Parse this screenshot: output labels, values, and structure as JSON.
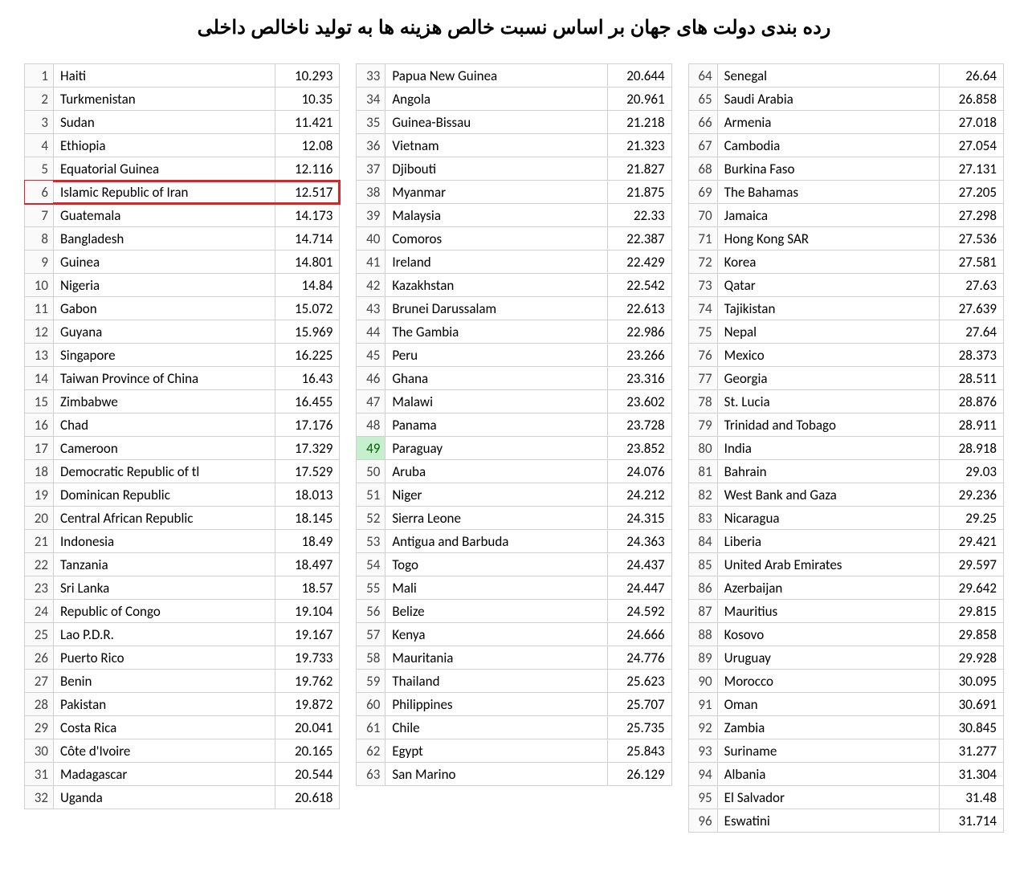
{
  "title": "رده بندی دولت های جهان بر اساس نسبت خالص هزینه ها به تولید ناخالص داخلی",
  "highlight_rank": 6,
  "highlight_color": "#d62728",
  "special_rank_cell": 49,
  "special_cell_bg": "#c6efce",
  "border_color": "#d0d0d0",
  "font_size": 17,
  "title_font_size": 24,
  "columns": [
    [
      {
        "rank": 1,
        "country": "Haiti",
        "value": "10.293"
      },
      {
        "rank": 2,
        "country": "Turkmenistan",
        "value": "10.35"
      },
      {
        "rank": 3,
        "country": "Sudan",
        "value": "11.421"
      },
      {
        "rank": 4,
        "country": "Ethiopia",
        "value": "12.08"
      },
      {
        "rank": 5,
        "country": "Equatorial Guinea",
        "value": "12.116"
      },
      {
        "rank": 6,
        "country": "Islamic Republic of Iran",
        "value": "12.517"
      },
      {
        "rank": 7,
        "country": "Guatemala",
        "value": "14.173"
      },
      {
        "rank": 8,
        "country": "Bangladesh",
        "value": "14.714"
      },
      {
        "rank": 9,
        "country": "Guinea",
        "value": "14.801"
      },
      {
        "rank": 10,
        "country": "Nigeria",
        "value": "14.84"
      },
      {
        "rank": 11,
        "country": "Gabon",
        "value": "15.072"
      },
      {
        "rank": 12,
        "country": "Guyana",
        "value": "15.969"
      },
      {
        "rank": 13,
        "country": "Singapore",
        "value": "16.225"
      },
      {
        "rank": 14,
        "country": "Taiwan Province of China",
        "value": "16.43"
      },
      {
        "rank": 15,
        "country": "Zimbabwe",
        "value": "16.455"
      },
      {
        "rank": 16,
        "country": "Chad",
        "value": "17.176"
      },
      {
        "rank": 17,
        "country": "Cameroon",
        "value": "17.329"
      },
      {
        "rank": 18,
        "country": "Democratic Republic of tl",
        "value": "17.529"
      },
      {
        "rank": 19,
        "country": "Dominican Republic",
        "value": "18.013"
      },
      {
        "rank": 20,
        "country": "Central African Republic",
        "value": "18.145"
      },
      {
        "rank": 21,
        "country": "Indonesia",
        "value": "18.49"
      },
      {
        "rank": 22,
        "country": "Tanzania",
        "value": "18.497"
      },
      {
        "rank": 23,
        "country": "Sri Lanka",
        "value": "18.57"
      },
      {
        "rank": 24,
        "country": "Republic of Congo",
        "value": "19.104"
      },
      {
        "rank": 25,
        "country": "Lao P.D.R.",
        "value": "19.167"
      },
      {
        "rank": 26,
        "country": "Puerto Rico",
        "value": "19.733"
      },
      {
        "rank": 27,
        "country": "Benin",
        "value": "19.762"
      },
      {
        "rank": 28,
        "country": "Pakistan",
        "value": "19.872"
      },
      {
        "rank": 29,
        "country": "Costa Rica",
        "value": "20.041"
      },
      {
        "rank": 30,
        "country": "Côte d'Ivoire",
        "value": "20.165"
      },
      {
        "rank": 31,
        "country": "Madagascar",
        "value": "20.544"
      },
      {
        "rank": 32,
        "country": "Uganda",
        "value": "20.618"
      }
    ],
    [
      {
        "rank": 33,
        "country": "Papua New Guinea",
        "value": "20.644"
      },
      {
        "rank": 34,
        "country": "Angola",
        "value": "20.961"
      },
      {
        "rank": 35,
        "country": "Guinea-Bissau",
        "value": "21.218"
      },
      {
        "rank": 36,
        "country": "Vietnam",
        "value": "21.323"
      },
      {
        "rank": 37,
        "country": "Djibouti",
        "value": "21.827"
      },
      {
        "rank": 38,
        "country": "Myanmar",
        "value": "21.875"
      },
      {
        "rank": 39,
        "country": "Malaysia",
        "value": "22.33"
      },
      {
        "rank": 40,
        "country": "Comoros",
        "value": "22.387"
      },
      {
        "rank": 41,
        "country": "Ireland",
        "value": "22.429"
      },
      {
        "rank": 42,
        "country": "Kazakhstan",
        "value": "22.542"
      },
      {
        "rank": 43,
        "country": "Brunei Darussalam",
        "value": "22.613"
      },
      {
        "rank": 44,
        "country": "The Gambia",
        "value": "22.986"
      },
      {
        "rank": 45,
        "country": "Peru",
        "value": "23.266"
      },
      {
        "rank": 46,
        "country": "Ghana",
        "value": "23.316"
      },
      {
        "rank": 47,
        "country": "Malawi",
        "value": "23.602"
      },
      {
        "rank": 48,
        "country": "Panama",
        "value": "23.728"
      },
      {
        "rank": 49,
        "country": "Paraguay",
        "value": "23.852"
      },
      {
        "rank": 50,
        "country": "Aruba",
        "value": "24.076"
      },
      {
        "rank": 51,
        "country": "Niger",
        "value": "24.212"
      },
      {
        "rank": 52,
        "country": "Sierra Leone",
        "value": "24.315"
      },
      {
        "rank": 53,
        "country": "Antigua and Barbuda",
        "value": "24.363"
      },
      {
        "rank": 54,
        "country": "Togo",
        "value": "24.437"
      },
      {
        "rank": 55,
        "country": "Mali",
        "value": "24.447"
      },
      {
        "rank": 56,
        "country": "Belize",
        "value": "24.592"
      },
      {
        "rank": 57,
        "country": "Kenya",
        "value": "24.666"
      },
      {
        "rank": 58,
        "country": "Mauritania",
        "value": "24.776"
      },
      {
        "rank": 59,
        "country": "Thailand",
        "value": "25.623"
      },
      {
        "rank": 60,
        "country": "Philippines",
        "value": "25.707"
      },
      {
        "rank": 61,
        "country": "Chile",
        "value": "25.735"
      },
      {
        "rank": 62,
        "country": "Egypt",
        "value": "25.843"
      },
      {
        "rank": 63,
        "country": "San Marino",
        "value": "26.129"
      }
    ],
    [
      {
        "rank": 64,
        "country": "Senegal",
        "value": "26.64"
      },
      {
        "rank": 65,
        "country": "Saudi Arabia",
        "value": "26.858"
      },
      {
        "rank": 66,
        "country": "Armenia",
        "value": "27.018"
      },
      {
        "rank": 67,
        "country": "Cambodia",
        "value": "27.054"
      },
      {
        "rank": 68,
        "country": "Burkina Faso",
        "value": "27.131"
      },
      {
        "rank": 69,
        "country": "The Bahamas",
        "value": "27.205"
      },
      {
        "rank": 70,
        "country": "Jamaica",
        "value": "27.298"
      },
      {
        "rank": 71,
        "country": "Hong Kong SAR",
        "value": "27.536"
      },
      {
        "rank": 72,
        "country": "Korea",
        "value": "27.581"
      },
      {
        "rank": 73,
        "country": "Qatar",
        "value": "27.63"
      },
      {
        "rank": 74,
        "country": "Tajikistan",
        "value": "27.639"
      },
      {
        "rank": 75,
        "country": "Nepal",
        "value": "27.64"
      },
      {
        "rank": 76,
        "country": "Mexico",
        "value": "28.373"
      },
      {
        "rank": 77,
        "country": "Georgia",
        "value": "28.511"
      },
      {
        "rank": 78,
        "country": "St. Lucia",
        "value": "28.876"
      },
      {
        "rank": 79,
        "country": "Trinidad and Tobago",
        "value": "28.911"
      },
      {
        "rank": 80,
        "country": "India",
        "value": "28.918"
      },
      {
        "rank": 81,
        "country": "Bahrain",
        "value": "29.03"
      },
      {
        "rank": 82,
        "country": "West Bank and Gaza",
        "value": "29.236"
      },
      {
        "rank": 83,
        "country": "Nicaragua",
        "value": "29.25"
      },
      {
        "rank": 84,
        "country": "Liberia",
        "value": "29.421"
      },
      {
        "rank": 85,
        "country": "United Arab Emirates",
        "value": "29.597"
      },
      {
        "rank": 86,
        "country": "Azerbaijan",
        "value": "29.642"
      },
      {
        "rank": 87,
        "country": "Mauritius",
        "value": "29.815"
      },
      {
        "rank": 88,
        "country": "Kosovo",
        "value": "29.858"
      },
      {
        "rank": 89,
        "country": "Uruguay",
        "value": "29.928"
      },
      {
        "rank": 90,
        "country": "Morocco",
        "value": "30.095"
      },
      {
        "rank": 91,
        "country": "Oman",
        "value": "30.691"
      },
      {
        "rank": 92,
        "country": "Zambia",
        "value": "30.845"
      },
      {
        "rank": 93,
        "country": "Suriname",
        "value": "31.277"
      },
      {
        "rank": 94,
        "country": "Albania",
        "value": "31.304"
      },
      {
        "rank": 95,
        "country": "El Salvador",
        "value": "31.48"
      },
      {
        "rank": 96,
        "country": "Eswatini",
        "value": "31.714"
      }
    ]
  ]
}
